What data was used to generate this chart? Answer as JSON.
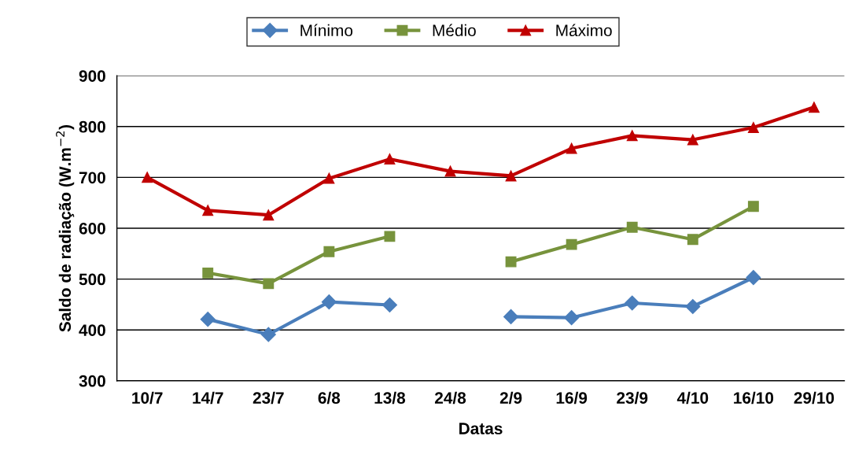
{
  "chart_data": {
    "type": "line",
    "xlabel": "Datas",
    "ylabel": "Saldo de radiação (W.m$^{−2}$)",
    "categories": [
      "10/7",
      "14/7",
      "23/7",
      "6/8",
      "13/8",
      "24/8",
      "2/9",
      "16/9",
      "23/9",
      "4/10",
      "16/10",
      "29/10"
    ],
    "series": [
      {
        "name": "Mínimo",
        "color": "#4a7ebb",
        "marker": "diamond",
        "values": [
          null,
          421,
          391,
          455,
          449,
          null,
          426,
          424,
          453,
          446,
          503,
          null
        ]
      },
      {
        "name": "Médio",
        "color": "#77933c",
        "marker": "square",
        "values": [
          null,
          512,
          491,
          554,
          584,
          null,
          534,
          568,
          602,
          578,
          643,
          null
        ]
      },
      {
        "name": "Máximo",
        "color": "#c00000",
        "marker": "triangle",
        "values": [
          700,
          635,
          626,
          698,
          736,
          712,
          703,
          757,
          782,
          774,
          798,
          838
        ]
      }
    ],
    "ylim": [
      300,
      900
    ],
    "yticks": [
      300,
      400,
      500,
      600,
      700,
      800,
      900
    ],
    "grid": "y",
    "legend": "top",
    "line_style": "solid"
  }
}
